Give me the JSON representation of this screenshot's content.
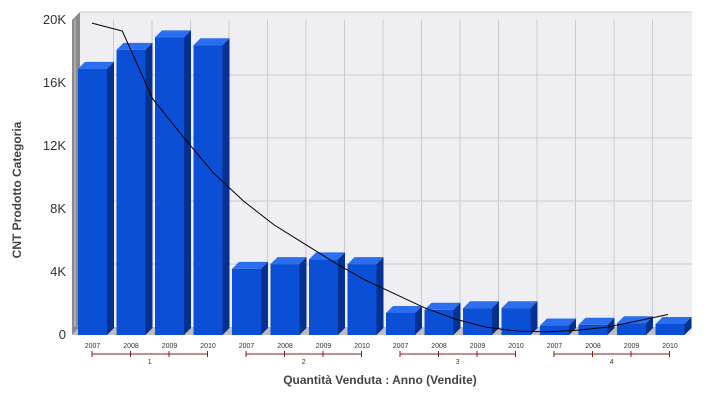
{
  "chart_data": {
    "type": "bar",
    "xlabel": "Quantità Venduta : Anno (Vendite)",
    "ylabel": "CNT Prodotto Categoria",
    "ylim": [
      0,
      20000
    ],
    "yticks": [
      0,
      4000,
      8000,
      12000,
      16000,
      20000
    ],
    "ytick_labels": [
      "0",
      "4K",
      "8K",
      "12K",
      "16K",
      "20K"
    ],
    "groups": [
      "1",
      "2",
      "3",
      "4"
    ],
    "years": [
      "2007",
      "2008",
      "2009",
      "2010"
    ],
    "series": [
      {
        "group": "1",
        "values": [
          16900,
          18100,
          18900,
          18400
        ]
      },
      {
        "group": "2",
        "values": [
          4200,
          4500,
          4800,
          4500
        ]
      },
      {
        "group": "3",
        "values": [
          1400,
          1600,
          1700,
          1700
        ]
      },
      {
        "group": "4",
        "values": [
          600,
          650,
          750,
          700
        ]
      }
    ],
    "trendline": [
      19800,
      19300,
      15000,
      12600,
      10300,
      8500,
      7000,
      5800,
      4600,
      3500,
      2600,
      1700,
      1000,
      500,
      250,
      200,
      300,
      500,
      900,
      1300
    ],
    "grid": true,
    "legend": "none",
    "colors": {
      "bar_front": "#0a4fd6",
      "bar_side": "#04318f",
      "bar_top": "#2b6ff0",
      "trend": "#000000",
      "plot_bg": "#eeeef3",
      "grid": "#c9c9d2",
      "bracket": "#8b1a1a"
    }
  }
}
